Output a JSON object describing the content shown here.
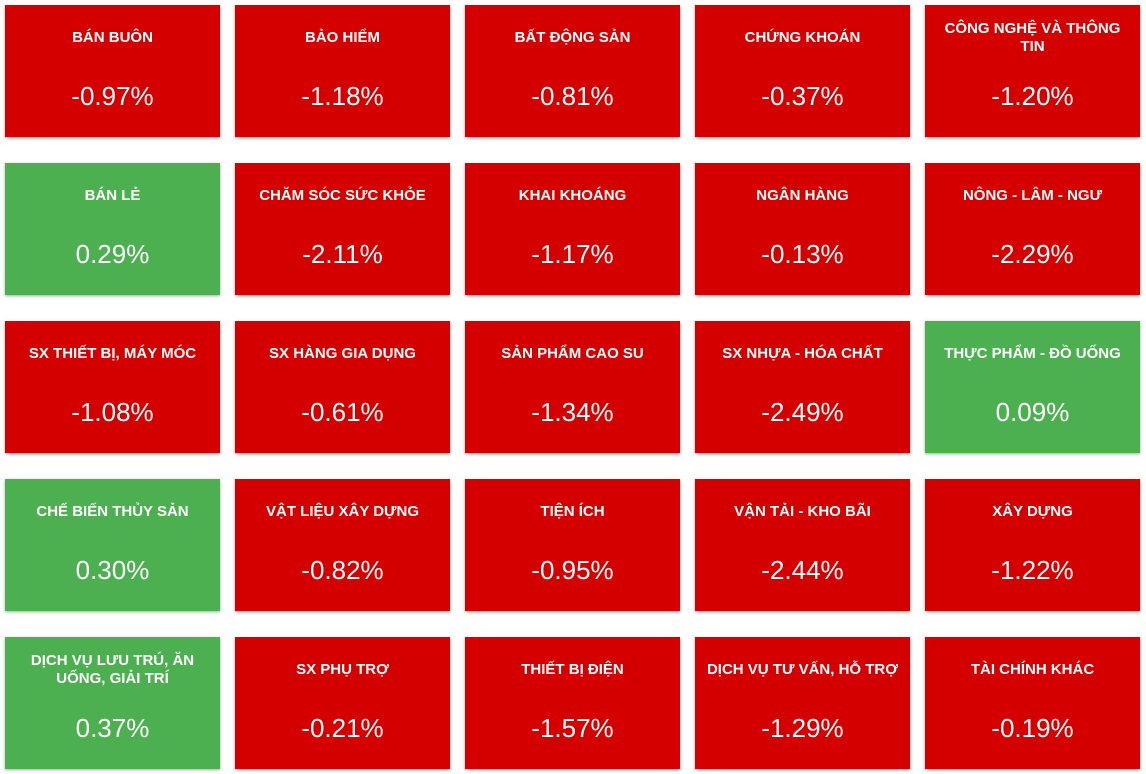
{
  "tiles": [
    {
      "name": "BÁN BUÔN",
      "change": "-0.97%",
      "color": "#d40000"
    },
    {
      "name": "BẢO HIỂM",
      "change": "-1.18%",
      "color": "#d40000"
    },
    {
      "name": "BẤT ĐỘNG SẢN",
      "change": "-0.81%",
      "color": "#d40000"
    },
    {
      "name": "CHỨNG KHOÁN",
      "change": "-0.37%",
      "color": "#d40000"
    },
    {
      "name": "CÔNG NGHỆ VÀ THÔNG TIN",
      "change": "-1.20%",
      "color": "#d40000"
    },
    {
      "name": "BÁN LẺ",
      "change": "0.29%",
      "color": "#4caf50"
    },
    {
      "name": "CHĂM SÓC SỨC KHỎE",
      "change": "-2.11%",
      "color": "#d40000"
    },
    {
      "name": "KHAI KHOÁNG",
      "change": "-1.17%",
      "color": "#d40000"
    },
    {
      "name": "NGÂN HÀNG",
      "change": "-0.13%",
      "color": "#d40000"
    },
    {
      "name": "NÔNG - LÂM - NGƯ",
      "change": "-2.29%",
      "color": "#d40000"
    },
    {
      "name": "SX THIẾT BỊ, MÁY MÓC",
      "change": "-1.08%",
      "color": "#d40000"
    },
    {
      "name": "SX HÀNG GIA DỤNG",
      "change": "-0.61%",
      "color": "#d40000"
    },
    {
      "name": "SẢN PHẨM CAO SU",
      "change": "-1.34%",
      "color": "#d40000"
    },
    {
      "name": "SX NHỰA - HÓA CHẤT",
      "change": "-2.49%",
      "color": "#d40000"
    },
    {
      "name": "THỰC PHẨM - ĐỒ UỐNG",
      "change": "0.09%",
      "color": "#4caf50"
    },
    {
      "name": "CHẾ BIẾN THỦY SẢN",
      "change": "0.30%",
      "color": "#4caf50"
    },
    {
      "name": "VẬT LIỆU XÂY DỰNG",
      "change": "-0.82%",
      "color": "#d40000"
    },
    {
      "name": "TIỆN ÍCH",
      "change": "-0.95%",
      "color": "#d40000"
    },
    {
      "name": "VẬN TẢI - KHO BÃI",
      "change": "-2.44%",
      "color": "#d40000"
    },
    {
      "name": "XÂY DỰNG",
      "change": "-1.22%",
      "color": "#d40000"
    },
    {
      "name": "DỊCH VỤ LƯU TRÚ, ĂN UỐNG, GIẢI TRÍ",
      "change": "0.37%",
      "color": "#4caf50"
    },
    {
      "name": "SX PHỤ TRỢ",
      "change": "-0.21%",
      "color": "#d40000"
    },
    {
      "name": "THIẾT BỊ ĐIỆN",
      "change": "-1.57%",
      "color": "#d40000"
    },
    {
      "name": "DỊCH VỤ TƯ VẤN, HỖ TRỢ",
      "change": "-1.29%",
      "color": "#d40000"
    },
    {
      "name": "TÀI CHÍNH KHÁC",
      "change": "-0.19%",
      "color": "#d40000"
    }
  ]
}
